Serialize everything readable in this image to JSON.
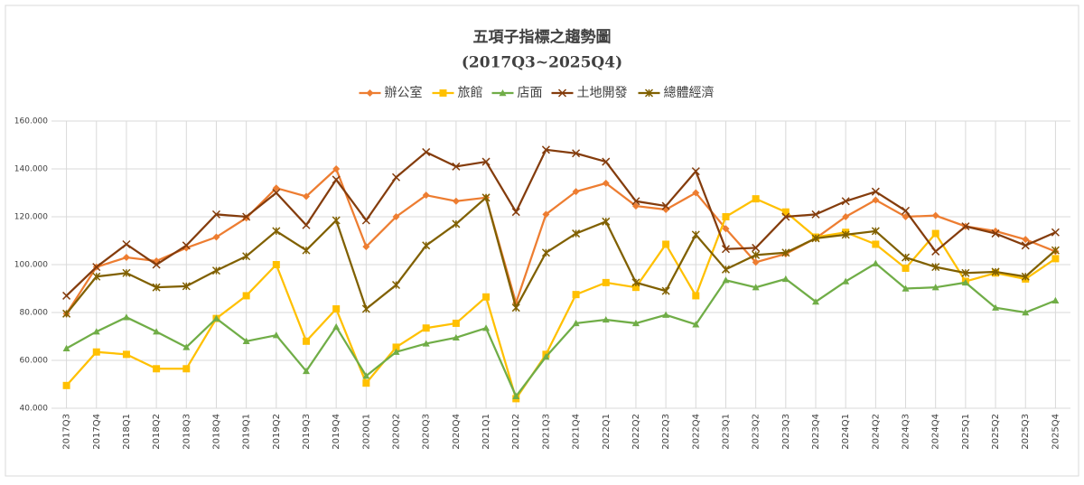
{
  "chart_data": {
    "type": "line",
    "title": "五項子指標之趨勢圖",
    "subtitle": "(2017Q3~2025Q4)",
    "categories": [
      "2017Q3",
      "2017Q4",
      "2018Q1",
      "2018Q2",
      "2018Q3",
      "2018Q4",
      "2019Q1",
      "2019Q2",
      "2019Q3",
      "2019Q4",
      "2020Q1",
      "2020Q2",
      "2020Q3",
      "2020Q4",
      "2021Q1",
      "2021Q2",
      "2021Q3",
      "2021Q4",
      "2022Q1",
      "2022Q2",
      "2022Q3",
      "2022Q4",
      "2023Q1",
      "2023Q2",
      "2023Q3",
      "2023Q4",
      "2024Q1",
      "2024Q2",
      "2024Q3",
      "2024Q4",
      "2025Q1",
      "2025Q2",
      "2025Q3",
      "2025Q4"
    ],
    "series": [
      {
        "name": "辦公室",
        "color": "#ED7D31",
        "marker": "diamond",
        "values": [
          79.5,
          99,
          103,
          101.5,
          107,
          111.5,
          119.5,
          132,
          128.5,
          140,
          107.5,
          120,
          129,
          126.5,
          128,
          84,
          121,
          130.5,
          134,
          124.5,
          123,
          130,
          115,
          101,
          104.5,
          111,
          120,
          127,
          120,
          120.5,
          116,
          114,
          110.5,
          105.5
        ]
      },
      {
        "name": "旅館",
        "color": "#FFC000",
        "marker": "square",
        "values": [
          49.5,
          63.5,
          62.5,
          56.5,
          56.5,
          77.5,
          87,
          100,
          68,
          81.5,
          50.5,
          65.5,
          73.5,
          75.5,
          86.5,
          44,
          62.5,
          87.5,
          92.5,
          90.5,
          108.5,
          87,
          120,
          127.5,
          122,
          111.5,
          113.5,
          108.5,
          98.5,
          113,
          93,
          96.5,
          94,
          102.5
        ]
      },
      {
        "name": "店面",
        "color": "#70AD47",
        "marker": "triangle",
        "values": [
          65,
          72,
          78,
          72,
          65.5,
          77.5,
          68,
          70.5,
          55.5,
          74,
          53.5,
          63.5,
          67,
          69.5,
          73.5,
          45,
          61.5,
          75.5,
          77,
          75.5,
          79,
          75,
          93.5,
          90.5,
          94,
          84.5,
          93,
          100.5,
          90,
          90.5,
          92.5,
          82,
          80,
          85
        ]
      },
      {
        "name": "土地開發",
        "color": "#843C0C",
        "marker": "x",
        "values": [
          87,
          99,
          108.5,
          100,
          108,
          121,
          120,
          130,
          116.5,
          135.5,
          118.5,
          136.5,
          147,
          141,
          143,
          122,
          148,
          146.5,
          143,
          126.5,
          124.5,
          139,
          106.5,
          107,
          120,
          121,
          126.5,
          130.5,
          122.5,
          105.5,
          116,
          113,
          108,
          113.5
        ]
      },
      {
        "name": "總體經濟",
        "color": "#806000",
        "marker": "star",
        "values": [
          79.5,
          95,
          96.5,
          90.5,
          91,
          97.5,
          103.5,
          114,
          106,
          118.5,
          81.5,
          91.5,
          108,
          117,
          128,
          82,
          105,
          113,
          118,
          92.5,
          89,
          112.5,
          98,
          104,
          105,
          111,
          112.5,
          114,
          103,
          99,
          96.5,
          97,
          95,
          106
        ]
      }
    ],
    "ylim": [
      40,
      160
    ],
    "yticks": [
      {
        "value": 40,
        "label": "40.000"
      },
      {
        "value": 60,
        "label": "60.000"
      },
      {
        "value": 80,
        "label": "80.000"
      },
      {
        "value": 100,
        "label": "100.000"
      },
      {
        "value": 120,
        "label": "120.000"
      },
      {
        "value": 140,
        "label": "140.000"
      },
      {
        "value": 160,
        "label": "160.000"
      }
    ],
    "grid": true,
    "legend": "top"
  }
}
